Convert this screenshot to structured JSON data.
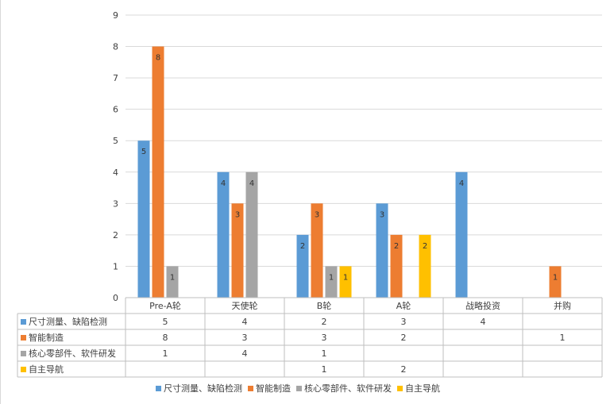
{
  "chart_data": {
    "type": "bar",
    "categories": [
      "Pre-A轮",
      "天使轮",
      "B轮",
      "A轮",
      "战略投资",
      "并购"
    ],
    "ylim": [
      0,
      9
    ],
    "yticks": [
      0,
      1,
      2,
      3,
      4,
      5,
      6,
      7,
      8,
      9
    ],
    "grid": true,
    "legend_position": "bottom",
    "data_table": true,
    "series": [
      {
        "name": "尺寸测量、缺陷检测",
        "color": "#5B9BD5",
        "values": [
          5,
          4,
          2,
          3,
          4,
          null
        ]
      },
      {
        "name": "智能制造",
        "color": "#ED7D31",
        "values": [
          8,
          3,
          3,
          2,
          null,
          1
        ]
      },
      {
        "name": "核心零部件、软件研发",
        "color": "#A5A5A5",
        "values": [
          1,
          4,
          1,
          null,
          null,
          null
        ]
      },
      {
        "name": "自主导航",
        "color": "#FFC000",
        "values": [
          null,
          null,
          1,
          2,
          null,
          null
        ]
      }
    ]
  }
}
